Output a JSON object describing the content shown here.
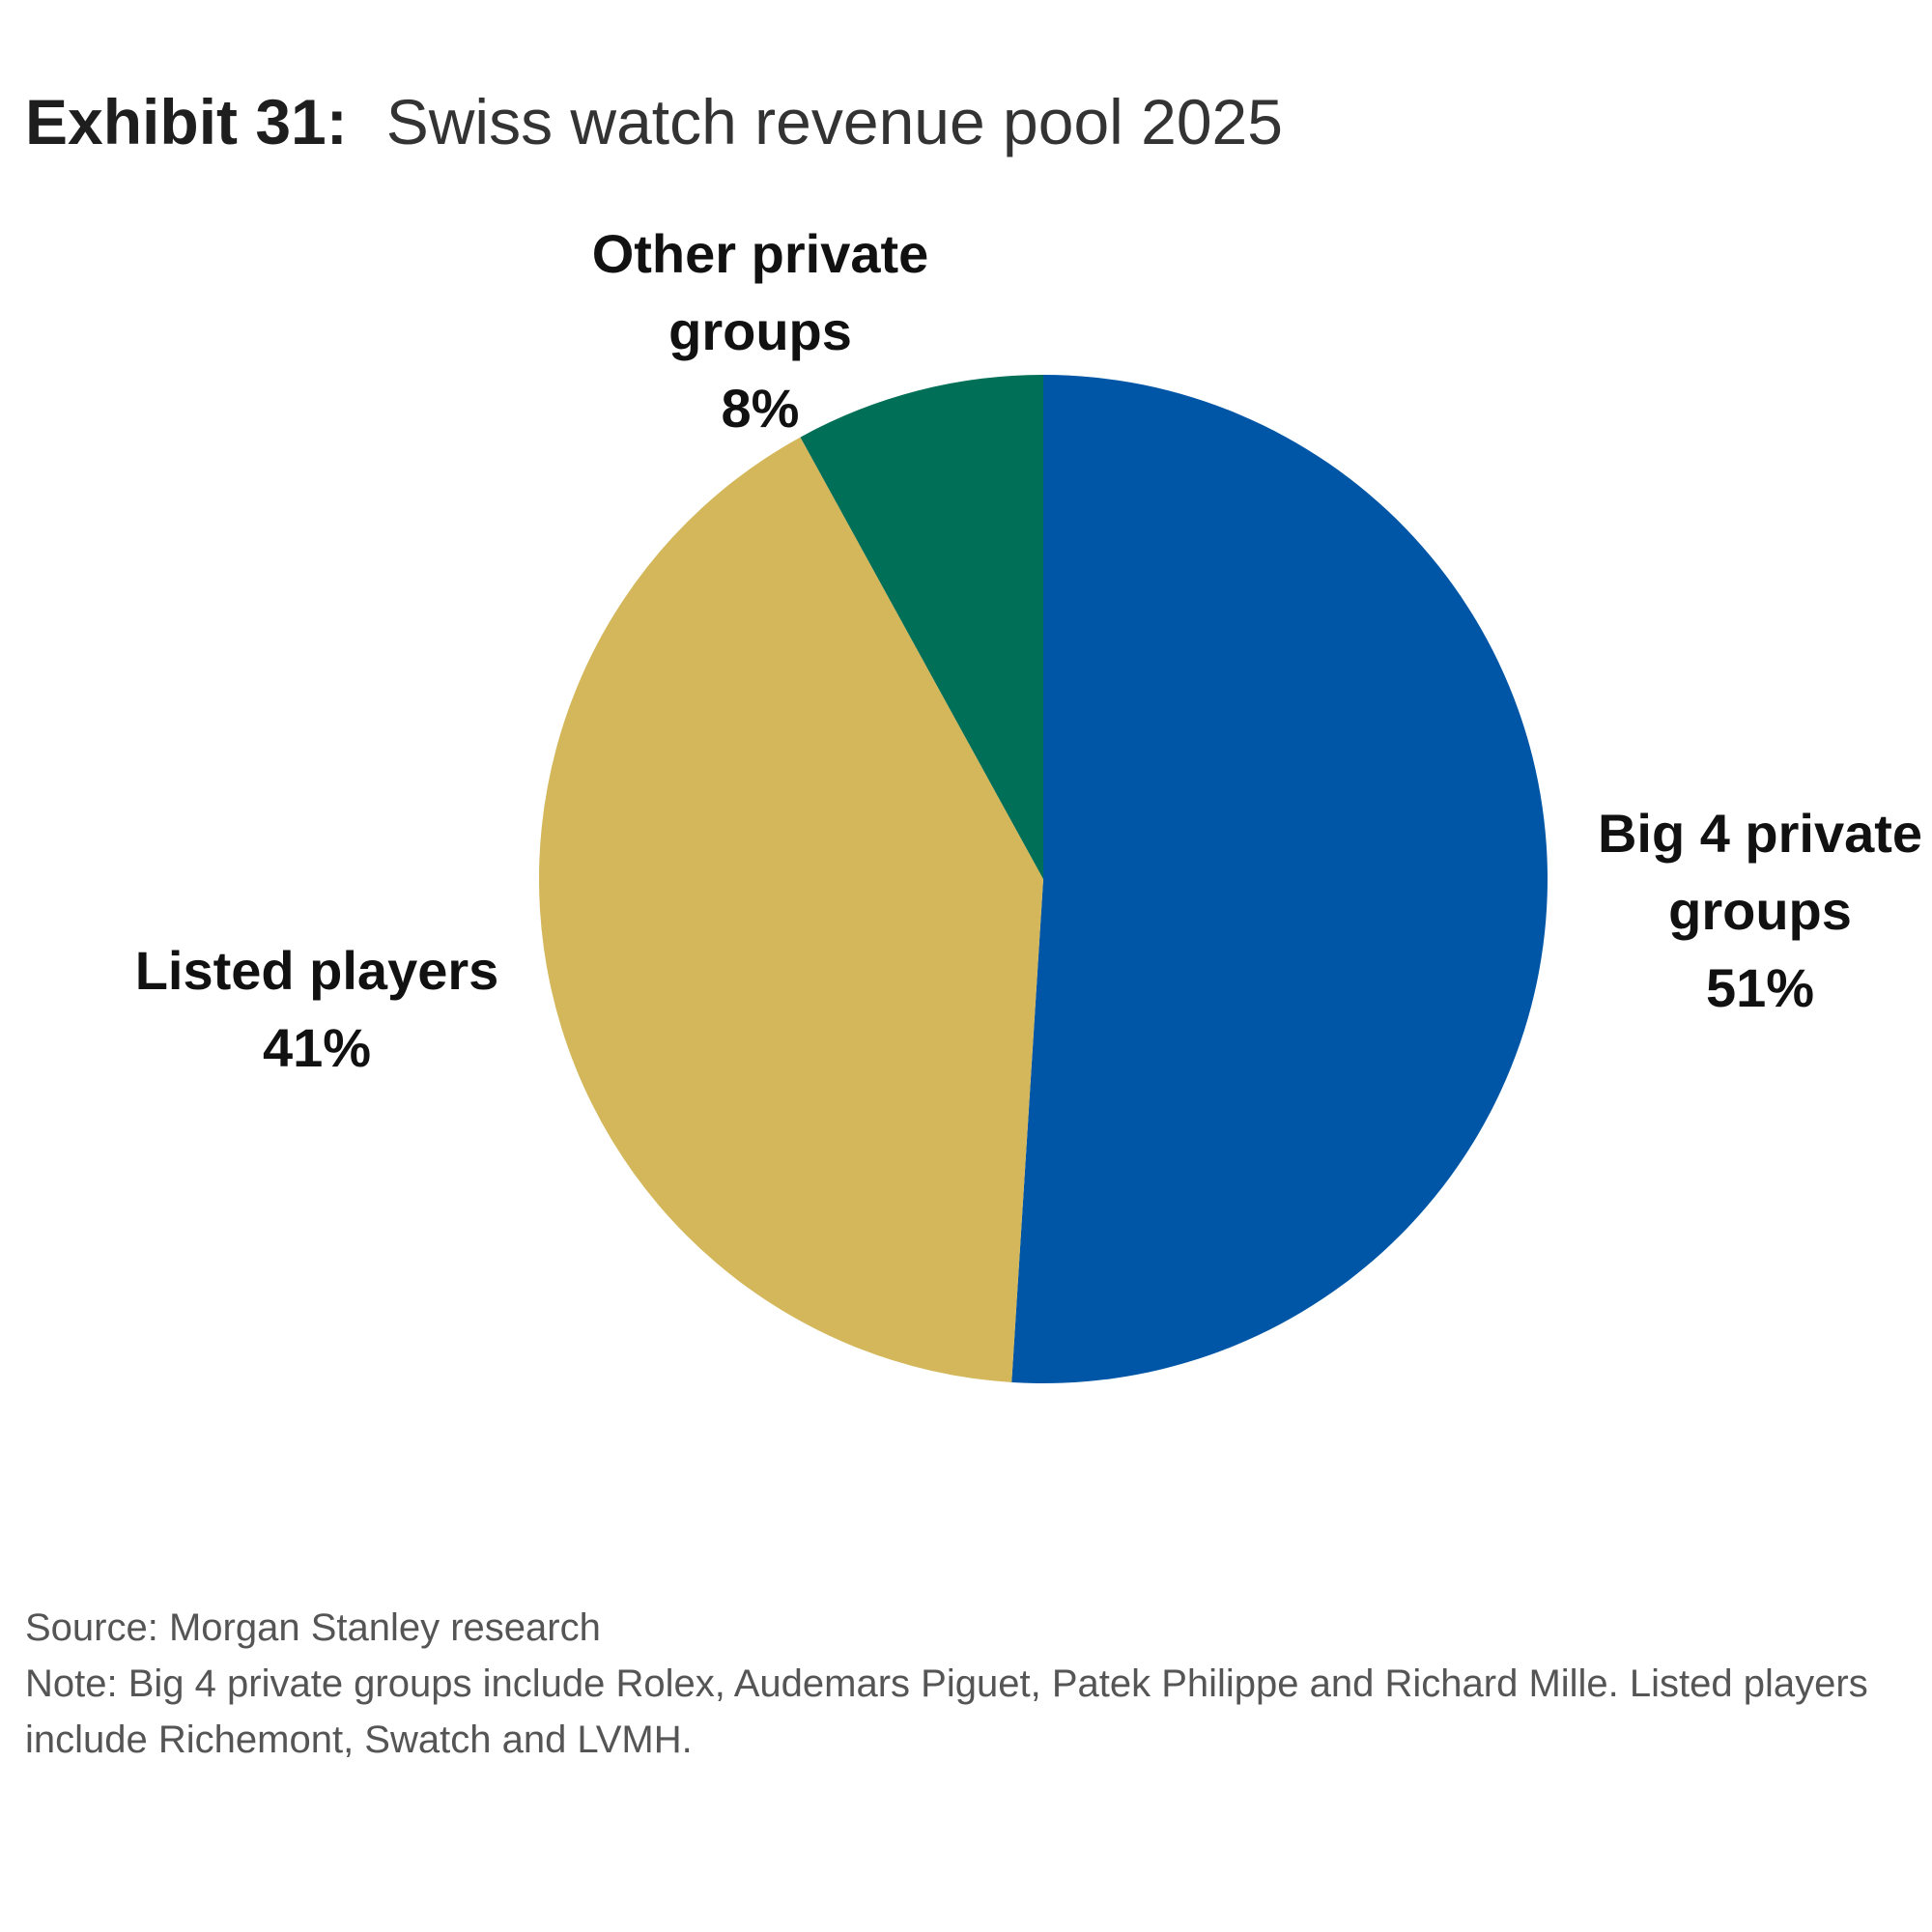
{
  "header": {
    "exhibit": "Exhibit 31:",
    "title": "Swiss watch revenue pool 2025"
  },
  "chart_data": {
    "type": "pie",
    "title": "Swiss watch revenue pool 2025",
    "start_angle": "12 o'clock, clockwise",
    "slices": [
      {
        "name": "Big 4 private groups",
        "label_lines": [
          "Big 4 private",
          "groups"
        ],
        "value": 51,
        "display": "51%",
        "color": "#0056A6"
      },
      {
        "name": "Listed players",
        "label_lines": [
          "Listed players"
        ],
        "value": 41,
        "display": "41%",
        "color": "#D4B75B"
      },
      {
        "name": "Other private groups",
        "label_lines": [
          "Other private",
          "groups"
        ],
        "value": 8,
        "display": "8%",
        "color": "#006F57"
      }
    ],
    "unit": "%"
  },
  "footer": {
    "source": "Source: Morgan Stanley research",
    "note": "Note: Big 4 private groups include Rolex, Audemars Piguet, Patek Philippe and Richard Mille. Listed players include Richemont, Swatch and LVMH."
  }
}
